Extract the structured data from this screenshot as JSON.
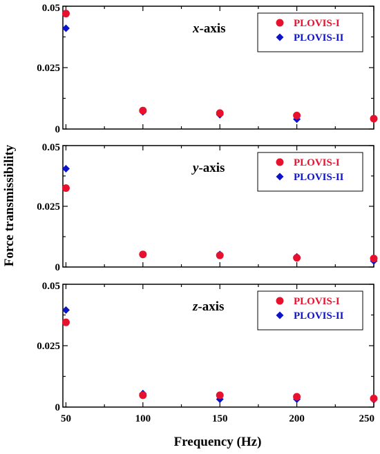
{
  "figure": {
    "ylabel": "Force transmissibility",
    "xlabel": "Frequency (Hz)"
  },
  "colors": {
    "plovis1": "#e8112d",
    "plovis2": "#0c13c8"
  },
  "chart_data": [
    {
      "type": "scatter",
      "panel_label": {
        "italic": "x",
        "rest": "-axis"
      },
      "x": [
        50,
        100,
        150,
        200,
        250
      ],
      "xlim": [
        48,
        250
      ],
      "ylim": [
        0,
        0.05
      ],
      "x_ticks": [
        "50",
        "100",
        "150",
        "200",
        "250"
      ],
      "y_ticks": [
        "0",
        "0.025",
        "0.05"
      ],
      "legend_position": "top-right",
      "series": [
        {
          "name": "PLOVIS-I",
          "marker": "circle",
          "color": "#e8112d",
          "values": [
            0.047,
            0.0075,
            0.0065,
            0.0055,
            0.0042
          ]
        },
        {
          "name": "PLOVIS-II",
          "marker": "diamond",
          "color": "#0c13c8",
          "values": [
            0.041,
            0.007,
            0.0058,
            0.004,
            0.0042
          ]
        }
      ]
    },
    {
      "type": "scatter",
      "panel_label": {
        "italic": "y",
        "rest": "-axis"
      },
      "x": [
        50,
        100,
        150,
        200,
        250
      ],
      "xlim": [
        48,
        250
      ],
      "ylim": [
        0,
        0.05
      ],
      "x_ticks": [
        "50",
        "100",
        "150",
        "200",
        "250"
      ],
      "y_ticks": [
        "0",
        "0.025",
        "0.05"
      ],
      "legend_position": "top-right",
      "series": [
        {
          "name": "PLOVIS-I",
          "marker": "circle",
          "color": "#e8112d",
          "values": [
            0.0325,
            0.0052,
            0.0048,
            0.0038,
            0.0035
          ]
        },
        {
          "name": "PLOVIS-II",
          "marker": "diamond",
          "color": "#0c13c8",
          "values": [
            0.0405,
            0.0052,
            0.0052,
            0.0042,
            0.0025
          ]
        }
      ]
    },
    {
      "type": "scatter",
      "panel_label": {
        "italic": "z",
        "rest": "-axis"
      },
      "x": [
        50,
        100,
        150,
        200,
        250
      ],
      "xlim": [
        48,
        250
      ],
      "ylim": [
        0,
        0.05
      ],
      "x_ticks": [
        "50",
        "100",
        "150",
        "200",
        "250"
      ],
      "y_ticks": [
        "0",
        "0.025",
        "0.05"
      ],
      "legend_position": "top-right",
      "series": [
        {
          "name": "PLOVIS-I",
          "marker": "circle",
          "color": "#e8112d",
          "values": [
            0.0345,
            0.0048,
            0.0048,
            0.0042,
            0.0035
          ]
        },
        {
          "name": "PLOVIS-II",
          "marker": "diamond",
          "color": "#0c13c8",
          "values": [
            0.0395,
            0.0055,
            0.0032,
            0.0032,
            0.003
          ]
        }
      ]
    }
  ]
}
